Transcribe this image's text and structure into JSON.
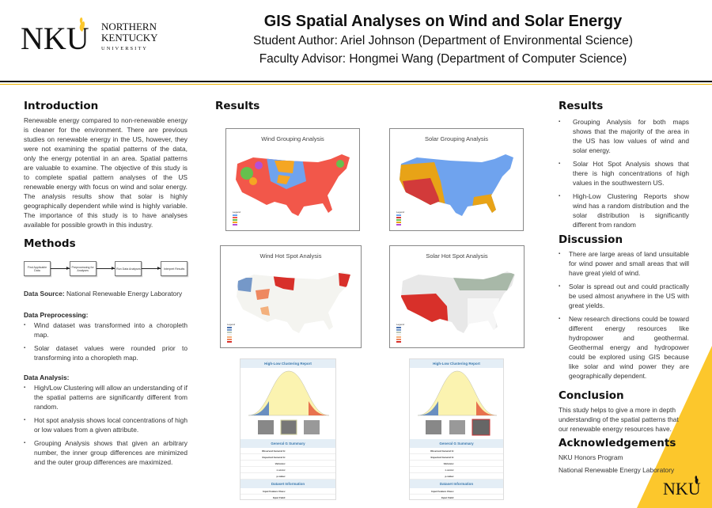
{
  "header": {
    "logo_text": "NKU NORTHERN KENTUCKY UNIVERSITY",
    "title": "GIS Spatial Analyses on Wind and Solar Energy",
    "author": "Student Author: Ariel Johnson (Department of Environmental Science)",
    "advisor": "Faculty Advisor: Hongmei Wang (Department of Computer Science)"
  },
  "colors": {
    "gold": "#fcc72c",
    "rule_gold": "#f0b400",
    "report_blue": "#3a78ad"
  },
  "introduction": {
    "heading": "Introduction",
    "body": "Renewable energy compared to non-renewable energy is cleaner for the environment. There are previous studies on renewable energy in the US, however, they were not examining the spatial patterns of the data, only the energy potential in an area. Spatial patterns are valuable to examine. The objective of this study is to complete spatial pattern analyses of the US renewable energy with focus on wind and solar energy. The analysis results show that solar is highly geographically dependent while wind is highly variable. The importance of this study is to have analyses available for possible growth in this industry."
  },
  "methods": {
    "heading": "Methods",
    "flow": [
      "Find Applicable Data",
      "Preprocessing for Analyses",
      "Run Data Analyses",
      "Interpret Results"
    ],
    "data_source_label": "Data Source:",
    "data_source": "National Renewable Energy Laboratory",
    "preprocessing_heading": "Data Preprocessing:",
    "preprocessing": [
      "Wind dataset was transformed into a choropleth map.",
      "Solar dataset values were rounded prior to transforming into a choropleth map."
    ],
    "analysis_heading": "Data Analysis:",
    "analysis": [
      "High/Low Clustering will allow an understanding of if the spatial patterns are significantly different from random.",
      "Hot spot analysis shows local concentrations of high or low values from a given attribute.",
      "Grouping Analysis shows that given an arbitrary number, the inner group differences are minimized and the outer group differences are maximized."
    ]
  },
  "results_figures": {
    "heading": "Results",
    "maps": [
      {
        "title": "Wind Grouping Analysis",
        "legend": "Legend"
      },
      {
        "title": "Solar Grouping Analysis",
        "legend": "Legend"
      },
      {
        "title": "Wind Hot Spot Analysis",
        "legend": "Legend"
      },
      {
        "title": "Solar Hot Spot Analysis",
        "legend": "Legend"
      }
    ],
    "report": {
      "title": "High-Low Clustering Report",
      "summary_title": "General G Summary",
      "rows": [
        "Observed General G:",
        "Expected General G:",
        "Variance:",
        "z-score:",
        "p-value:"
      ],
      "dataset_title": "Dataset Information",
      "dataset_rows": [
        "Input Feature Class:",
        "Input Field:"
      ]
    }
  },
  "results": {
    "heading": "Results",
    "items": [
      "Grouping Analysis for both maps shows that the majority of the area in the US has low values of wind and solar energy.",
      "Solar Hot Spot Analysis shows that there is high concentrations of high values in the southwestern US.",
      "High-Low Clustering Reports show wind has a random distribution and the solar distribution is significantly different from random"
    ]
  },
  "discussion": {
    "heading": "Discussion",
    "items": [
      "There are large areas of land unsuitable for wind power and small areas that will have great yield of wind.",
      "Solar is spread out and could practically be used almost anywhere in the US with great yields.",
      "New research directions could be toward different energy resources like hydropower and geothermal. Geothermal energy and hydropower could be explored using GIS because like solar and wind power they are geographically dependent."
    ]
  },
  "conclusion": {
    "heading": "Conclusion",
    "body": "This study helps to give a more in depth understanding of the spatial patterns that our renewable energy resources have."
  },
  "acknowledgements": {
    "heading": "Acknowledgements",
    "items": [
      "NKU Honors Program",
      "National Renewable Energy Laboratory"
    ]
  },
  "footer_logo_text": "NKU"
}
